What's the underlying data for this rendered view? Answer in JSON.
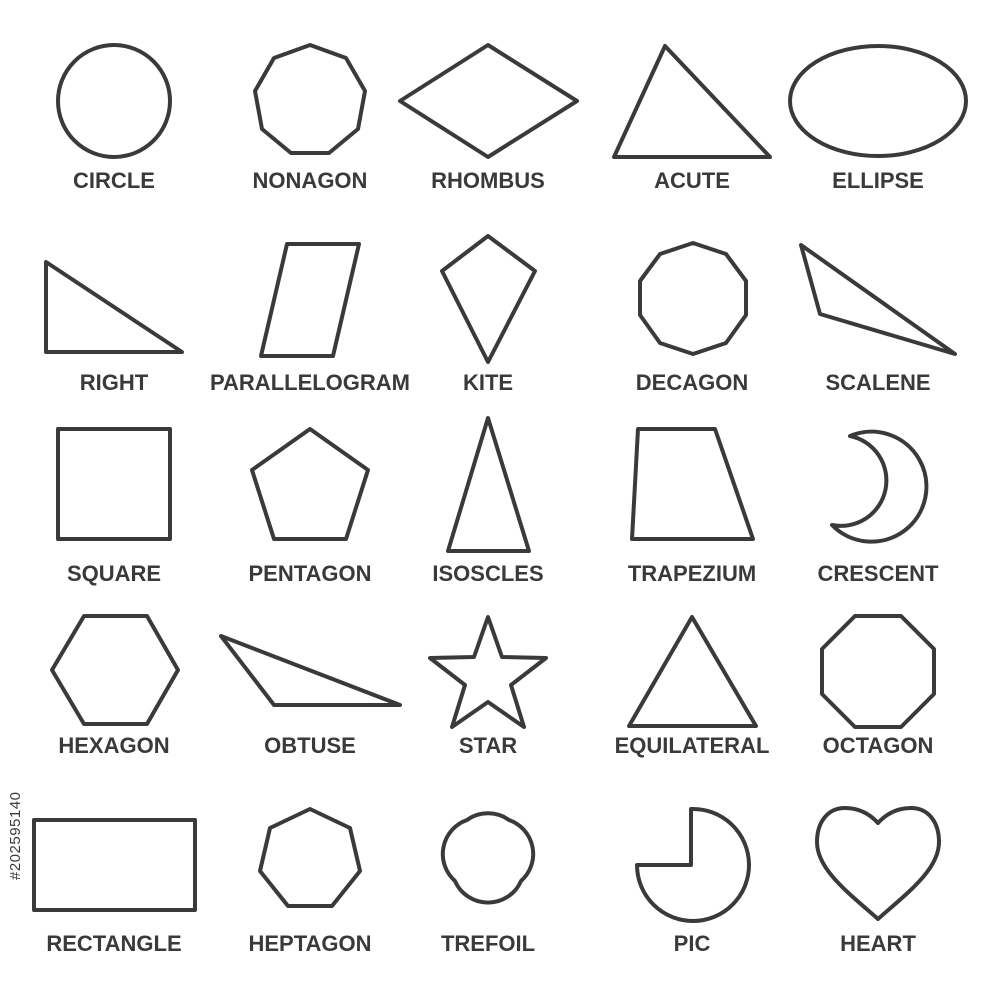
{
  "colors": {
    "stroke": "#3a3a3a",
    "text": "#3a3a3a",
    "background": "#ffffff"
  },
  "stock_id": "#202595140",
  "shapes": [
    {
      "key": "circle",
      "label": "CIRCLE"
    },
    {
      "key": "nonagon",
      "label": "NONAGON"
    },
    {
      "key": "rhombus",
      "label": "RHOMBUS"
    },
    {
      "key": "acute",
      "label": "ACUTE"
    },
    {
      "key": "ellipse",
      "label": "ELLIPSE"
    },
    {
      "key": "right",
      "label": "RIGHT"
    },
    {
      "key": "parallelogram",
      "label": "PARALLELOGRAM"
    },
    {
      "key": "kite",
      "label": "KITE"
    },
    {
      "key": "decagon",
      "label": "DECAGON"
    },
    {
      "key": "scalene",
      "label": "SCALENE"
    },
    {
      "key": "square",
      "label": "SQUARE"
    },
    {
      "key": "pentagon",
      "label": "PENTAGON"
    },
    {
      "key": "isoscles",
      "label": "ISOSCLES"
    },
    {
      "key": "trapezium",
      "label": "TRAPEZIUM"
    },
    {
      "key": "crescent",
      "label": "CRESCENT"
    },
    {
      "key": "hexagon",
      "label": "HEXAGON"
    },
    {
      "key": "obtuse",
      "label": "OBTUSE"
    },
    {
      "key": "star",
      "label": "STAR"
    },
    {
      "key": "equilateral",
      "label": "EQUILATERAL"
    },
    {
      "key": "octagon",
      "label": "OCTAGON"
    },
    {
      "key": "rectangle",
      "label": "RECTANGLE"
    },
    {
      "key": "heptagon",
      "label": "HEPTAGON"
    },
    {
      "key": "trefoil",
      "label": "TREFOIL"
    },
    {
      "key": "pic",
      "label": "PIC"
    },
    {
      "key": "heart",
      "label": "HEART"
    }
  ]
}
